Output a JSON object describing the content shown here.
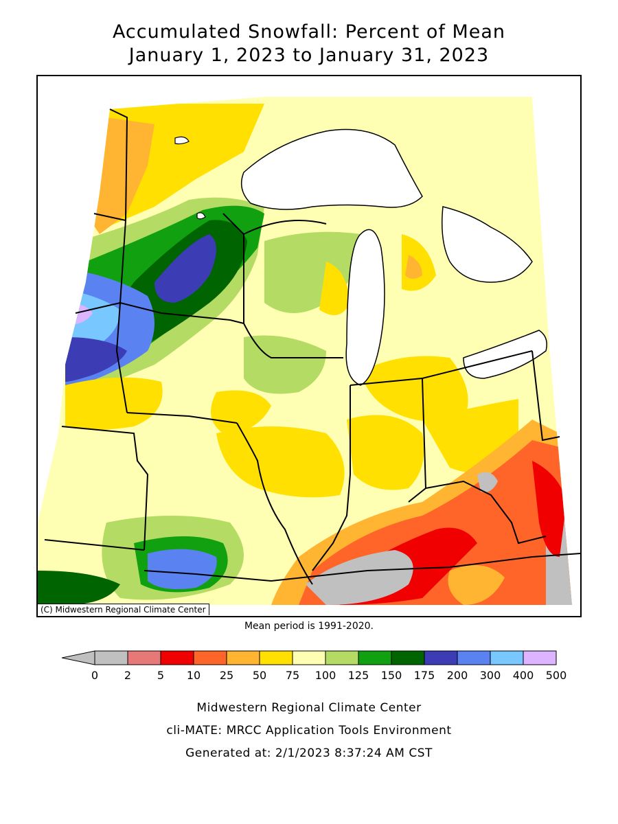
{
  "title_line1": "Accumulated Snowfall: Percent of Mean",
  "title_line2": "January 1, 2023 to January 31, 2023",
  "copyright": "(C) Midwestern Regional Climate Center",
  "mean_period": "Mean period is 1991-2020.",
  "legend": {
    "labels": [
      "0",
      "2",
      "5",
      "10",
      "25",
      "50",
      "75",
      "100",
      "125",
      "150",
      "175",
      "200",
      "300",
      "400",
      "500"
    ],
    "below_min_color": "#c0c0c0",
    "colors": [
      "#c0c0c0",
      "#e67878",
      "#f00000",
      "#ff6428",
      "#ffb432",
      "#ffe000",
      "#ffffb4",
      "#b4dc64",
      "#10a010",
      "#006400",
      "#3c3cb4",
      "#5a82f0",
      "#78c8ff",
      "#dcb4ff"
    ]
  },
  "credits": {
    "line1": "Midwestern Regional Climate Center",
    "line2": "cli-MATE: MRCC Application Tools Environment",
    "line3": "Generated at: 2/1/2023 8:37:24 AM CST"
  },
  "map": {
    "lake_color": "#ffffff",
    "boundary_color": "#000000"
  }
}
